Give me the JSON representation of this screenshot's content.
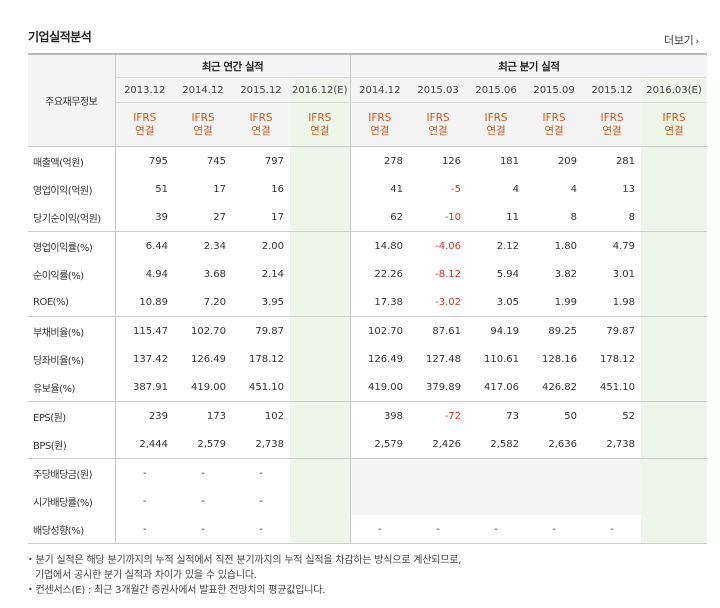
{
  "section_title": "기업실적분석",
  "more_label": "더보기",
  "row_header_label": "주요재무정보",
  "annual_header": "최근 연간 실적",
  "quarter_header": "최근 분기 실적",
  "annual_periods": [
    "2013.12",
    "2014.12",
    "2015.12",
    "2016.12(E)"
  ],
  "quarter_periods": [
    "2014.12",
    "2015.03",
    "2015.06",
    "2015.09",
    "2015.12",
    "2016.03(E)"
  ],
  "ifrs_line1": "IFRS",
  "ifrs_line2": "연결",
  "rows": [
    {
      "label": "매출액(억원)",
      "annual": [
        "795",
        "745",
        "797",
        ""
      ],
      "quarter": [
        "278",
        "126",
        "181",
        "209",
        "281",
        ""
      ],
      "group_start": false
    },
    {
      "label": "영업이익(억원)",
      "annual": [
        "51",
        "17",
        "16",
        ""
      ],
      "quarter": [
        "41",
        "-5",
        "4",
        "4",
        "13",
        ""
      ],
      "group_start": false
    },
    {
      "label": "당기순이익(억원)",
      "annual": [
        "39",
        "27",
        "17",
        ""
      ],
      "quarter": [
        "62",
        "-10",
        "11",
        "8",
        "8",
        ""
      ],
      "group_start": false
    },
    {
      "label": "영업이익률(%)",
      "annual": [
        "6.44",
        "2.34",
        "2.00",
        ""
      ],
      "quarter": [
        "14.80",
        "-4.06",
        "2.12",
        "1.80",
        "4.79",
        ""
      ],
      "group_start": true
    },
    {
      "label": "순이익률(%)",
      "annual": [
        "4.94",
        "3.68",
        "2.14",
        ""
      ],
      "quarter": [
        "22.26",
        "-8.12",
        "5.94",
        "3.82",
        "3.01",
        ""
      ],
      "group_start": false
    },
    {
      "label": "ROE(%)",
      "annual": [
        "10.89",
        "7.20",
        "3.95",
        ""
      ],
      "quarter": [
        "17.38",
        "-3.02",
        "3.05",
        "1.99",
        "1.98",
        ""
      ],
      "group_start": false
    },
    {
      "label": "부채비율(%)",
      "annual": [
        "115.47",
        "102.70",
        "79.87",
        ""
      ],
      "quarter": [
        "102.70",
        "87.61",
        "94.19",
        "89.25",
        "79.87",
        ""
      ],
      "group_start": true
    },
    {
      "label": "당좌비율(%)",
      "annual": [
        "137.42",
        "126.49",
        "178.12",
        ""
      ],
      "quarter": [
        "126.49",
        "127.48",
        "110.61",
        "128.16",
        "178.12",
        ""
      ],
      "group_start": false
    },
    {
      "label": "유보율(%)",
      "annual": [
        "387.91",
        "419.00",
        "451.10",
        ""
      ],
      "quarter": [
        "419.00",
        "379.89",
        "417.06",
        "426.82",
        "451.10",
        ""
      ],
      "group_start": false
    },
    {
      "label": "EPS(원)",
      "annual": [
        "239",
        "173",
        "102",
        ""
      ],
      "quarter": [
        "398",
        "-72",
        "73",
        "50",
        "52",
        ""
      ],
      "group_start": true
    },
    {
      "label": "BPS(원)",
      "annual": [
        "2,444",
        "2,579",
        "2,738",
        ""
      ],
      "quarter": [
        "2,579",
        "2,426",
        "2,582",
        "2,636",
        "2,738",
        ""
      ],
      "group_start": false
    },
    {
      "label": "주당배당금(원)",
      "annual": [
        "-",
        "-",
        "-",
        ""
      ],
      "quarter": [
        "",
        "",
        "",
        "",
        "",
        ""
      ],
      "group_start": true
    },
    {
      "label": "시가배당률(%)",
      "annual": [
        "-",
        "-",
        "-",
        ""
      ],
      "quarter": [
        "",
        "",
        "",
        "",
        "",
        ""
      ],
      "group_start": false
    },
    {
      "label": "배당성향(%)",
      "annual": [
        "-",
        "-",
        "-",
        ""
      ],
      "quarter": [
        "-",
        "-",
        "-",
        "-",
        "-",
        ""
      ],
      "group_start": false
    }
  ],
  "notes": {
    "line1": "분기 실적은 해당 분기까지의 누적 실적에서 직전 분기까지의 누적 실적을 차감하는 방식으로 계산되므로,",
    "line2": "기업에서 공시한 분기 실적과 차이가 있을 수 있습니다.",
    "line3": "컨센서스(E) : 최근 3개월간 증권사에서 발표한 전망치의 평균값입니다."
  },
  "colors": {
    "negative": "#c0392b",
    "ifrs": "#c85a1a",
    "estimate_bg": "#eef6ea",
    "header_bg": "#f4f4f4"
  }
}
